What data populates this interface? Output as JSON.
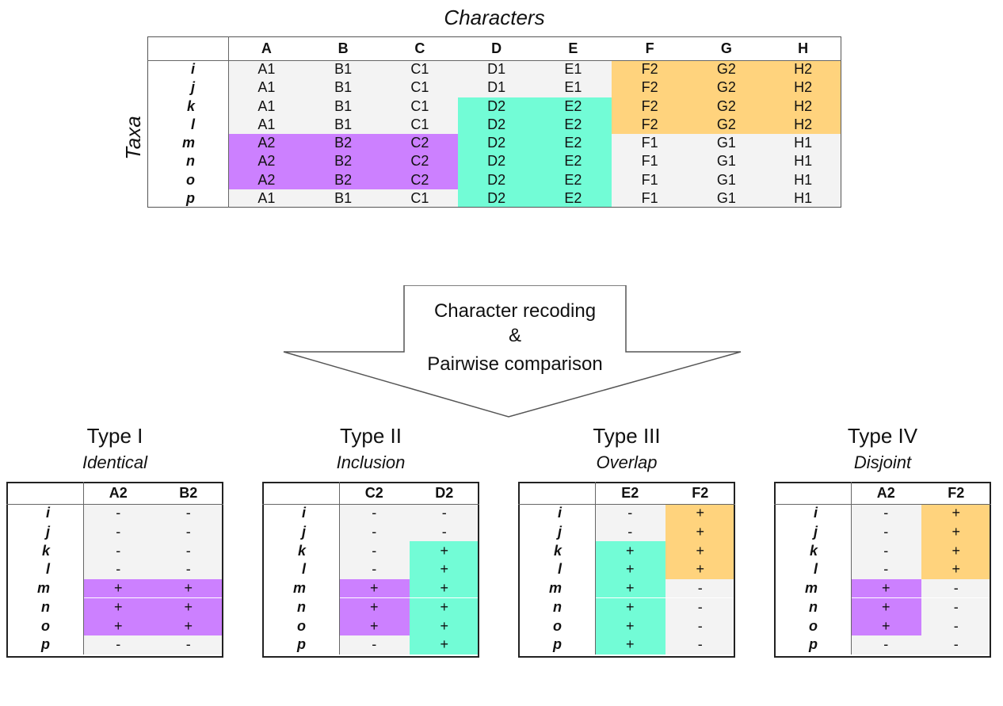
{
  "title_characters": "Characters",
  "title_taxa": "Taxa",
  "main": {
    "columns": [
      "A",
      "B",
      "C",
      "D",
      "E",
      "F",
      "G",
      "H"
    ],
    "rows": [
      {
        "taxon": "i",
        "cells": [
          "A1",
          "B1",
          "C1",
          "D1",
          "E1",
          "F2",
          "G2",
          "H2"
        ]
      },
      {
        "taxon": "j",
        "cells": [
          "A1",
          "B1",
          "C1",
          "D1",
          "E1",
          "F2",
          "G2",
          "H2"
        ]
      },
      {
        "taxon": "k",
        "cells": [
          "A1",
          "B1",
          "C1",
          "D2",
          "E2",
          "F2",
          "G2",
          "H2"
        ]
      },
      {
        "taxon": "l",
        "cells": [
          "A1",
          "B1",
          "C1",
          "D2",
          "E2",
          "F2",
          "G2",
          "H2"
        ]
      },
      {
        "taxon": "m",
        "cells": [
          "A2",
          "B2",
          "C2",
          "D2",
          "E2",
          "F1",
          "G1",
          "H1"
        ]
      },
      {
        "taxon": "n",
        "cells": [
          "A2",
          "B2",
          "C2",
          "D2",
          "E2",
          "F1",
          "G1",
          "H1"
        ]
      },
      {
        "taxon": "o",
        "cells": [
          "A2",
          "B2",
          "C2",
          "D2",
          "E2",
          "F1",
          "G1",
          "H1"
        ]
      },
      {
        "taxon": "p",
        "cells": [
          "A1",
          "B1",
          "C1",
          "D2",
          "E2",
          "F1",
          "G1",
          "H1"
        ]
      }
    ]
  },
  "arrow": {
    "line1": "Character recoding",
    "line2": "&",
    "line3": "Pairwise comparison"
  },
  "subtables": [
    {
      "type": "Type I",
      "relation": "Identical",
      "columns": [
        "A2",
        "B2"
      ],
      "taxa": [
        "i",
        "j",
        "k",
        "l",
        "m",
        "n",
        "o",
        "p"
      ],
      "col1": [
        "-",
        "-",
        "-",
        "-",
        "+",
        "+",
        "+",
        "-"
      ],
      "col2": [
        "-",
        "-",
        "-",
        "-",
        "+",
        "+",
        "+",
        "-"
      ]
    },
    {
      "type": "Type II",
      "relation": "Inclusion",
      "columns": [
        "C2",
        "D2"
      ],
      "taxa": [
        "i",
        "j",
        "k",
        "l",
        "m",
        "n",
        "o",
        "p"
      ],
      "col1": [
        "-",
        "-",
        "-",
        "-",
        "+",
        "+",
        "+",
        "-"
      ],
      "col2": [
        "-",
        "-",
        "+",
        "+",
        "+",
        "+",
        "+",
        "+"
      ]
    },
    {
      "type": "Type III",
      "relation": "Overlap",
      "columns": [
        "E2",
        "F2"
      ],
      "taxa": [
        "i",
        "j",
        "k",
        "l",
        "m",
        "n",
        "o",
        "p"
      ],
      "col1": [
        "-",
        "-",
        "+",
        "+",
        "+",
        "+",
        "+",
        "+"
      ],
      "col2": [
        "+",
        "+",
        "+",
        "+",
        "-",
        "-",
        "-",
        "-"
      ]
    },
    {
      "type": "Type IV",
      "relation": "Disjoint",
      "columns": [
        "A2",
        "F2"
      ],
      "taxa": [
        "i",
        "j",
        "k",
        "l",
        "m",
        "n",
        "o",
        "p"
      ],
      "col1": [
        "-",
        "-",
        "-",
        "-",
        "+",
        "+",
        "+",
        "-"
      ],
      "col2": [
        "+",
        "+",
        "+",
        "+",
        "-",
        "-",
        "-",
        "-"
      ]
    }
  ],
  "colors": {
    "purple": "#cc80ff",
    "teal": "#72fcd6",
    "orange": "#ffd37d",
    "gray": "#f3f3f3"
  }
}
